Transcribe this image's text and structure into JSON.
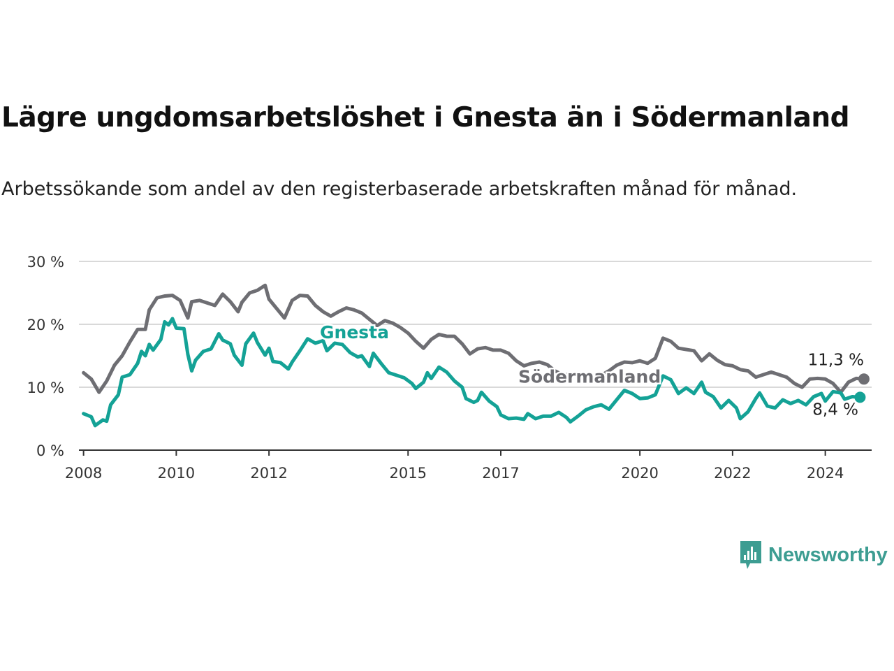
{
  "header": {
    "title": "Lägre ungdomsarbetslöshet i Gnesta än i Södermanland",
    "subtitle": "Arbetssökande som andel av den registerbaserade arbetskraften månad för månad."
  },
  "brand": {
    "name": "Newsworthy",
    "icon": "newsworthy-logo-icon",
    "color": "#3d9d92"
  },
  "chart_data": {
    "type": "line",
    "title": "Lägre ungdomsarbetslöshet i Gnesta än i Södermanland",
    "subtitle": "Arbetssökande som andel av den registerbaserade arbetskraften månad för månad.",
    "y_ticks": [
      "0 %",
      "10 %",
      "20 %",
      "30 %"
    ],
    "ylim": [
      0,
      30
    ],
    "x_ticks": [
      "2008",
      "2010",
      "2012",
      "2015",
      "2017",
      "2020",
      "2022",
      "2024"
    ],
    "xlim": [
      "2008-01",
      "2024-12"
    ],
    "grid": true,
    "series": [
      {
        "name": "Södermanland",
        "color": "#6e6e73",
        "end_label": "11,3 %",
        "points": [
          [
            "2008-01",
            12.3
          ],
          [
            "2008-03",
            11.3
          ],
          [
            "2008-05",
            9.2
          ],
          [
            "2008-07",
            11.0
          ],
          [
            "2008-09",
            13.5
          ],
          [
            "2008-11",
            15.0
          ],
          [
            "2009-01",
            17.2
          ],
          [
            "2009-03",
            19.2
          ],
          [
            "2009-05",
            19.2
          ],
          [
            "2009-06",
            22.3
          ],
          [
            "2009-08",
            24.2
          ],
          [
            "2009-10",
            24.5
          ],
          [
            "2009-12",
            24.6
          ],
          [
            "2010-02",
            23.8
          ],
          [
            "2010-04",
            21.0
          ],
          [
            "2010-05",
            23.6
          ],
          [
            "2010-07",
            23.8
          ],
          [
            "2010-09",
            23.4
          ],
          [
            "2010-11",
            23.0
          ],
          [
            "2011-01",
            24.8
          ],
          [
            "2011-03",
            23.6
          ],
          [
            "2011-05",
            22.0
          ],
          [
            "2011-06",
            23.5
          ],
          [
            "2011-08",
            25.0
          ],
          [
            "2011-10",
            25.4
          ],
          [
            "2011-12",
            26.2
          ],
          [
            "2012-01",
            24.0
          ],
          [
            "2012-03",
            22.5
          ],
          [
            "2012-05",
            21.0
          ],
          [
            "2012-07",
            23.8
          ],
          [
            "2012-09",
            24.6
          ],
          [
            "2012-11",
            24.5
          ],
          [
            "2013-01",
            23.0
          ],
          [
            "2013-03",
            22.0
          ],
          [
            "2013-05",
            21.3
          ],
          [
            "2013-07",
            22.0
          ],
          [
            "2013-09",
            22.6
          ],
          [
            "2013-11",
            22.3
          ],
          [
            "2014-01",
            21.8
          ],
          [
            "2014-03",
            20.8
          ],
          [
            "2014-05",
            19.8
          ],
          [
            "2014-07",
            20.6
          ],
          [
            "2014-09",
            20.2
          ],
          [
            "2014-11",
            19.5
          ],
          [
            "2015-01",
            18.6
          ],
          [
            "2015-03",
            17.3
          ],
          [
            "2015-05",
            16.2
          ],
          [
            "2015-07",
            17.6
          ],
          [
            "2015-09",
            18.4
          ],
          [
            "2015-11",
            18.1
          ],
          [
            "2016-01",
            18.1
          ],
          [
            "2016-03",
            16.9
          ],
          [
            "2016-05",
            15.3
          ],
          [
            "2016-07",
            16.1
          ],
          [
            "2016-09",
            16.3
          ],
          [
            "2016-11",
            15.9
          ],
          [
            "2017-01",
            15.9
          ],
          [
            "2017-03",
            15.4
          ],
          [
            "2017-05",
            14.2
          ],
          [
            "2017-07",
            13.4
          ],
          [
            "2017-09",
            13.8
          ],
          [
            "2017-11",
            14.0
          ],
          [
            "2018-01",
            13.6
          ],
          [
            "2018-03",
            12.6
          ],
          [
            "2018-05",
            12.0
          ],
          [
            "2018-07",
            12.0
          ],
          [
            "2018-09",
            12.0
          ],
          [
            "2018-11",
            11.9
          ],
          [
            "2019-01",
            11.4
          ],
          [
            "2019-03",
            11.9
          ],
          [
            "2019-05",
            12.6
          ],
          [
            "2019-07",
            13.5
          ],
          [
            "2019-09",
            14.0
          ],
          [
            "2019-11",
            13.9
          ],
          [
            "2020-01",
            14.2
          ],
          [
            "2020-03",
            13.8
          ],
          [
            "2020-05",
            14.6
          ],
          [
            "2020-07",
            17.8
          ],
          [
            "2020-09",
            17.3
          ],
          [
            "2020-11",
            16.2
          ],
          [
            "2021-01",
            16.0
          ],
          [
            "2021-03",
            15.8
          ],
          [
            "2021-05",
            14.2
          ],
          [
            "2021-07",
            15.3
          ],
          [
            "2021-09",
            14.3
          ],
          [
            "2021-11",
            13.6
          ],
          [
            "2022-01",
            13.4
          ],
          [
            "2022-03",
            12.8
          ],
          [
            "2022-05",
            12.6
          ],
          [
            "2022-07",
            11.6
          ],
          [
            "2022-09",
            12.0
          ],
          [
            "2022-11",
            12.4
          ],
          [
            "2023-01",
            12.0
          ],
          [
            "2023-03",
            11.6
          ],
          [
            "2023-05",
            10.6
          ],
          [
            "2023-07",
            10.0
          ],
          [
            "2023-09",
            11.3
          ],
          [
            "2023-11",
            11.4
          ],
          [
            "2024-01",
            11.3
          ],
          [
            "2024-03",
            10.6
          ],
          [
            "2024-05",
            9.2
          ],
          [
            "2024-07",
            10.8
          ],
          [
            "2024-09",
            11.4
          ],
          [
            "2024-11",
            11.3
          ]
        ]
      },
      {
        "name": "Gnesta",
        "color": "#14a296",
        "end_label": "8,4 %",
        "points": [
          [
            "2008-01",
            5.8
          ],
          [
            "2008-03",
            5.3
          ],
          [
            "2008-04",
            3.9
          ],
          [
            "2008-06",
            4.8
          ],
          [
            "2008-07",
            4.6
          ],
          [
            "2008-08",
            7.2
          ],
          [
            "2008-10",
            8.8
          ],
          [
            "2008-11",
            11.6
          ],
          [
            "2009-01",
            12.0
          ],
          [
            "2009-03",
            13.8
          ],
          [
            "2009-04",
            15.7
          ],
          [
            "2009-05",
            15.0
          ],
          [
            "2009-06",
            16.8
          ],
          [
            "2009-07",
            15.9
          ],
          [
            "2009-09",
            17.6
          ],
          [
            "2009-10",
            20.4
          ],
          [
            "2009-11",
            19.9
          ],
          [
            "2009-12",
            20.9
          ],
          [
            "2010-01",
            19.4
          ],
          [
            "2010-03",
            19.3
          ],
          [
            "2010-04",
            15.2
          ],
          [
            "2010-05",
            12.6
          ],
          [
            "2010-06",
            14.3
          ],
          [
            "2010-08",
            15.7
          ],
          [
            "2010-10",
            16.1
          ],
          [
            "2010-12",
            18.5
          ],
          [
            "2011-01",
            17.5
          ],
          [
            "2011-03",
            16.9
          ],
          [
            "2011-04",
            15.1
          ],
          [
            "2011-06",
            13.5
          ],
          [
            "2011-07",
            16.9
          ],
          [
            "2011-09",
            18.6
          ],
          [
            "2011-10",
            17.1
          ],
          [
            "2011-12",
            15.1
          ],
          [
            "2012-01",
            16.2
          ],
          [
            "2012-02",
            14.1
          ],
          [
            "2012-04",
            13.9
          ],
          [
            "2012-06",
            12.9
          ],
          [
            "2012-07",
            14.0
          ],
          [
            "2012-09",
            15.8
          ],
          [
            "2012-11",
            17.7
          ],
          [
            "2013-01",
            17.0
          ],
          [
            "2013-03",
            17.4
          ],
          [
            "2013-04",
            15.8
          ],
          [
            "2013-06",
            17.0
          ],
          [
            "2013-08",
            16.8
          ],
          [
            "2013-10",
            15.5
          ],
          [
            "2013-12",
            14.8
          ],
          [
            "2014-01",
            15.0
          ],
          [
            "2014-03",
            13.3
          ],
          [
            "2014-04",
            15.4
          ],
          [
            "2014-06",
            13.8
          ],
          [
            "2014-08",
            12.3
          ],
          [
            "2014-10",
            11.9
          ],
          [
            "2014-12",
            11.5
          ],
          [
            "2015-02",
            10.6
          ],
          [
            "2015-03",
            9.8
          ],
          [
            "2015-05",
            10.8
          ],
          [
            "2015-06",
            12.3
          ],
          [
            "2015-07",
            11.4
          ],
          [
            "2015-09",
            13.2
          ],
          [
            "2015-11",
            12.4
          ],
          [
            "2016-01",
            11.0
          ],
          [
            "2016-03",
            10.0
          ],
          [
            "2016-04",
            8.2
          ],
          [
            "2016-06",
            7.6
          ],
          [
            "2016-07",
            7.9
          ],
          [
            "2016-08",
            9.2
          ],
          [
            "2016-10",
            7.8
          ],
          [
            "2016-12",
            6.9
          ],
          [
            "2017-01",
            5.6
          ],
          [
            "2017-03",
            5.0
          ],
          [
            "2017-05",
            5.1
          ],
          [
            "2017-07",
            4.9
          ],
          [
            "2017-08",
            5.8
          ],
          [
            "2017-10",
            5.0
          ],
          [
            "2017-12",
            5.4
          ],
          [
            "2018-02",
            5.4
          ],
          [
            "2018-04",
            6.0
          ],
          [
            "2018-06",
            5.2
          ],
          [
            "2018-07",
            4.5
          ],
          [
            "2018-09",
            5.4
          ],
          [
            "2018-11",
            6.4
          ],
          [
            "2019-01",
            6.9
          ],
          [
            "2019-03",
            7.2
          ],
          [
            "2019-05",
            6.5
          ],
          [
            "2019-07",
            8.0
          ],
          [
            "2019-09",
            9.5
          ],
          [
            "2019-11",
            9.0
          ],
          [
            "2020-01",
            8.2
          ],
          [
            "2020-03",
            8.3
          ],
          [
            "2020-05",
            8.8
          ],
          [
            "2020-07",
            11.8
          ],
          [
            "2020-09",
            11.2
          ],
          [
            "2020-11",
            9.0
          ],
          [
            "2021-01",
            9.9
          ],
          [
            "2021-03",
            9.0
          ],
          [
            "2021-05",
            10.8
          ],
          [
            "2021-06",
            9.2
          ],
          [
            "2021-08",
            8.5
          ],
          [
            "2021-10",
            6.7
          ],
          [
            "2021-12",
            7.9
          ],
          [
            "2022-02",
            6.7
          ],
          [
            "2022-03",
            5.0
          ],
          [
            "2022-05",
            6.1
          ],
          [
            "2022-07",
            8.2
          ],
          [
            "2022-08",
            9.1
          ],
          [
            "2022-10",
            7.0
          ],
          [
            "2022-12",
            6.7
          ],
          [
            "2023-02",
            8.0
          ],
          [
            "2023-04",
            7.4
          ],
          [
            "2023-06",
            7.9
          ],
          [
            "2023-08",
            7.2
          ],
          [
            "2023-10",
            8.5
          ],
          [
            "2023-12",
            9.0
          ],
          [
            "2024-01",
            7.8
          ],
          [
            "2024-03",
            9.3
          ],
          [
            "2024-05",
            9.1
          ],
          [
            "2024-06",
            8.1
          ],
          [
            "2024-08",
            8.5
          ],
          [
            "2024-10",
            8.4
          ]
        ]
      }
    ]
  }
}
